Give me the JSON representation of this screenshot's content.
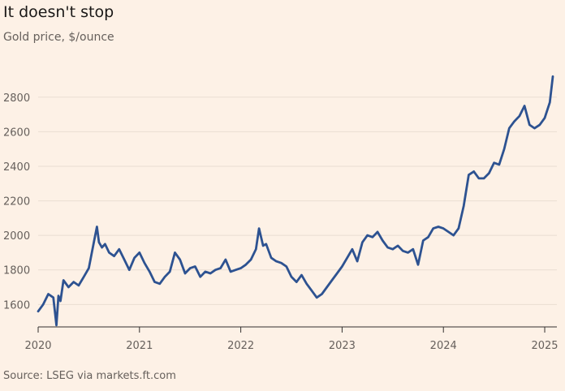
{
  "title": "It doesn't stop",
  "subtitle": "Gold price, $/ounce",
  "source": "Source: LSEG via markets.ft.com",
  "colors": {
    "background": "#fdf1e6",
    "line": "#2d5291",
    "grid": "#e9ddd2",
    "axis": "#33302e"
  },
  "chart_data": {
    "type": "line",
    "title": "It doesn't stop",
    "subtitle": "Gold price, $/ounce",
    "xlabel": "",
    "ylabel": "",
    "xlim": [
      2020.0,
      2025.12
    ],
    "ylim": [
      1470,
      2940
    ],
    "x_ticks": [
      2020,
      2021,
      2022,
      2023,
      2024,
      2025
    ],
    "x_tick_labels": [
      "2020",
      "2021",
      "2022",
      "2023",
      "2024",
      "2025"
    ],
    "y_ticks": [
      1600,
      1800,
      2000,
      2200,
      2400,
      2600,
      2800
    ],
    "y_tick_labels": [
      "1600",
      "1800",
      "2000",
      "2200",
      "2400",
      "2600",
      "2800"
    ],
    "grid": "horizontal",
    "series": [
      {
        "color": "#2d5291",
        "x": [
          2020.0,
          2020.05,
          2020.1,
          2020.15,
          2020.18,
          2020.2,
          2020.22,
          2020.25,
          2020.3,
          2020.35,
          2020.4,
          2020.45,
          2020.5,
          2020.55,
          2020.58,
          2020.6,
          2020.63,
          2020.66,
          2020.7,
          2020.75,
          2020.8,
          2020.85,
          2020.9,
          2020.95,
          2021.0,
          2021.05,
          2021.1,
          2021.15,
          2021.2,
          2021.25,
          2021.3,
          2021.35,
          2021.4,
          2021.45,
          2021.5,
          2021.55,
          2021.6,
          2021.65,
          2021.7,
          2021.75,
          2021.8,
          2021.85,
          2021.9,
          2021.95,
          2022.0,
          2022.05,
          2022.1,
          2022.15,
          2022.18,
          2022.22,
          2022.25,
          2022.3,
          2022.35,
          2022.4,
          2022.45,
          2022.5,
          2022.55,
          2022.6,
          2022.65,
          2022.7,
          2022.75,
          2022.8,
          2022.85,
          2022.9,
          2022.95,
          2023.0,
          2023.05,
          2023.1,
          2023.15,
          2023.2,
          2023.25,
          2023.3,
          2023.35,
          2023.4,
          2023.45,
          2023.5,
          2023.55,
          2023.6,
          2023.65,
          2023.7,
          2023.75,
          2023.8,
          2023.85,
          2023.9,
          2023.95,
          2024.0,
          2024.05,
          2024.1,
          2024.15,
          2024.2,
          2024.25,
          2024.3,
          2024.35,
          2024.4,
          2024.45,
          2024.5,
          2024.55,
          2024.6,
          2024.65,
          2024.7,
          2024.75,
          2024.8,
          2024.85,
          2024.9,
          2024.95,
          2025.0,
          2025.05,
          2025.08
        ],
        "values": [
          1560,
          1600,
          1660,
          1640,
          1480,
          1650,
          1620,
          1740,
          1700,
          1730,
          1710,
          1760,
          1810,
          1960,
          2050,
          1960,
          1930,
          1950,
          1900,
          1880,
          1920,
          1860,
          1800,
          1870,
          1900,
          1840,
          1790,
          1730,
          1720,
          1760,
          1790,
          1900,
          1860,
          1780,
          1810,
          1820,
          1760,
          1790,
          1780,
          1800,
          1810,
          1860,
          1790,
          1800,
          1810,
          1830,
          1860,
          1920,
          2040,
          1940,
          1950,
          1870,
          1850,
          1840,
          1820,
          1760,
          1730,
          1770,
          1720,
          1680,
          1640,
          1660,
          1700,
          1740,
          1780,
          1820,
          1870,
          1920,
          1850,
          1960,
          2000,
          1990,
          2020,
          1970,
          1930,
          1920,
          1940,
          1910,
          1900,
          1920,
          1830,
          1970,
          1990,
          2040,
          2050,
          2040,
          2020,
          2000,
          2040,
          2170,
          2350,
          2370,
          2330,
          2330,
          2360,
          2420,
          2410,
          2500,
          2620,
          2660,
          2690,
          2750,
          2640,
          2620,
          2640,
          2680,
          2770,
          2920
        ]
      }
    ]
  }
}
